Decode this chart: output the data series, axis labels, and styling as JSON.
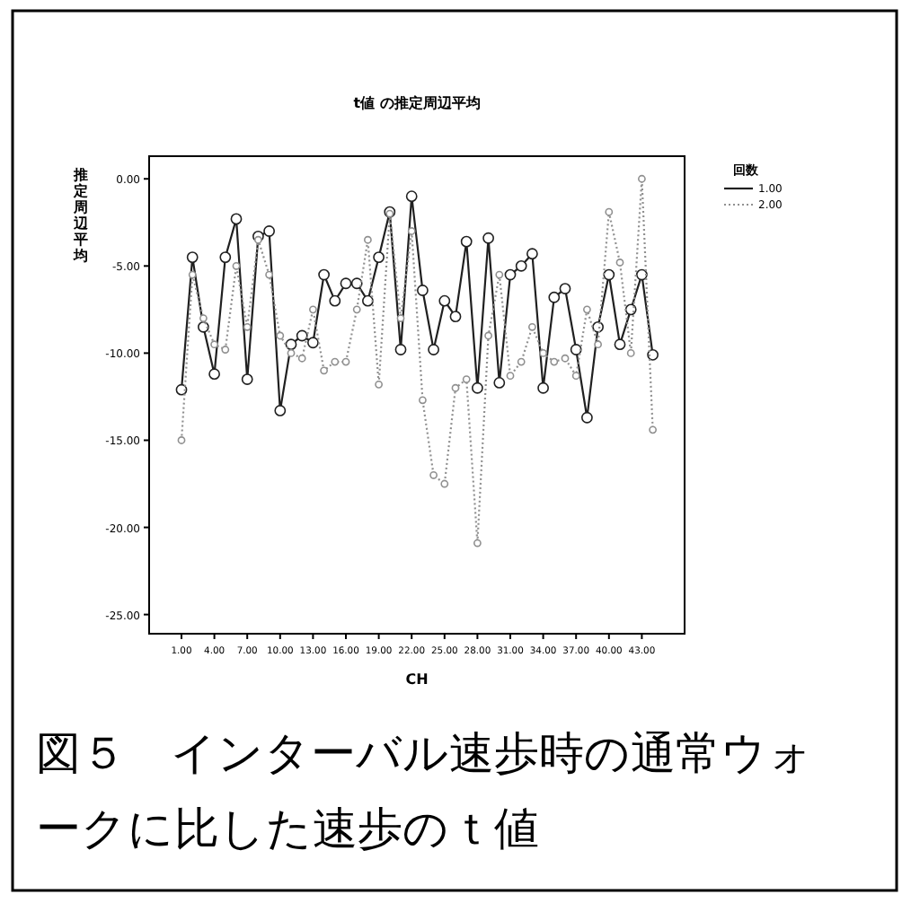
{
  "chart_data": {
    "type": "line",
    "title": "t値 の推定周辺平均",
    "xlabel": "CH",
    "ylabel": "推定周辺平均",
    "legend_title": "回数",
    "categories": [
      "1.00",
      null,
      null,
      "4.00",
      null,
      null,
      "7.00",
      null,
      null,
      "10.00",
      null,
      null,
      "13.00",
      null,
      null,
      "16.00",
      null,
      null,
      "19.00",
      null,
      null,
      "22.00",
      null,
      null,
      "25.00",
      null,
      null,
      "28.00",
      null,
      null,
      "31.00",
      null,
      null,
      "34.00",
      null,
      null,
      "37.00",
      null,
      null,
      "40.00",
      null,
      null,
      "43.00",
      null
    ],
    "ylim": [
      -26.1,
      1.3
    ],
    "yticks": [
      {
        "value": 0,
        "label": "0.00"
      },
      {
        "value": -5,
        "label": "-5.00"
      },
      {
        "value": -10,
        "label": "-10.00"
      },
      {
        "value": -15,
        "label": "-15.00"
      },
      {
        "value": -20,
        "label": "-20.00"
      },
      {
        "value": -25,
        "label": "-25.00"
      }
    ],
    "series": [
      {
        "name": "1.00",
        "color": "#202020",
        "line_style": "solid",
        "values": [
          -12.1,
          -4.5,
          -8.5,
          -11.2,
          -4.5,
          -2.3,
          -11.5,
          -3.3,
          -3.0,
          -13.3,
          -9.5,
          -9.0,
          -9.4,
          -5.5,
          -7.0,
          -6.0,
          -6.0,
          -7.0,
          -4.5,
          -1.9,
          -9.8,
          -1.0,
          -6.4,
          -9.8,
          -7.0,
          -7.9,
          -3.6,
          -12.0,
          -3.4,
          -11.7,
          -5.5,
          -5.0,
          -4.3,
          -12.0,
          -6.8,
          -6.3,
          -9.8,
          -13.7,
          -8.5,
          -5.5,
          -9.5,
          -7.5,
          -5.5,
          -10.1
        ]
      },
      {
        "name": "2.00",
        "color": "#909090",
        "line_style": "dotted",
        "values": [
          -15.0,
          -5.5,
          -8.0,
          -9.5,
          -9.8,
          -5.0,
          -8.5,
          -3.5,
          -5.5,
          -9.0,
          -10.0,
          -10.3,
          -7.5,
          -11.0,
          -10.5,
          -10.5,
          -7.5,
          -3.5,
          -11.8,
          -2.0,
          -8.0,
          -3.0,
          -12.7,
          -17.0,
          -17.5,
          -12.0,
          -11.5,
          -20.9,
          -9.0,
          -5.5,
          -11.3,
          -10.5,
          -8.5,
          -10.0,
          -10.5,
          -10.3,
          -11.3,
          -7.5,
          -9.5,
          -1.9,
          -4.8,
          -10.0,
          0.0,
          -14.4
        ]
      }
    ],
    "marker": "circle",
    "grid": false,
    "legend": "top right",
    "annotations": [
      "図５　インターバル速歩時の通常ウォークに比した速歩のｔ値"
    ]
  }
}
